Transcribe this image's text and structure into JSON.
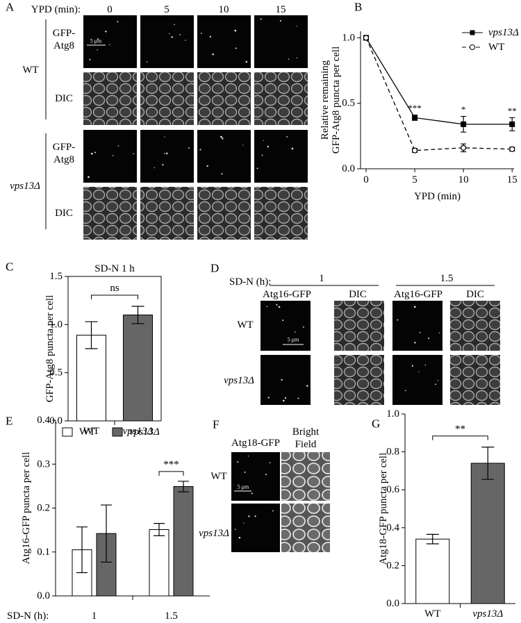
{
  "chart_data": [
    {
      "type": "line",
      "panel": "B",
      "xlabel": "YPD (min)",
      "ylabel": [
        "Relative remaining",
        "GFP-Atg8 puncta per cell"
      ],
      "x": [
        0,
        5,
        10,
        15
      ],
      "xlim": [
        -0.57,
        15.2
      ],
      "xticks": [
        0,
        5,
        10,
        15
      ],
      "ylim": [
        0,
        1.05
      ],
      "yticks": [
        {
          "value": 0,
          "label": "0.0"
        },
        0.5,
        {
          "value": 1,
          "label": "1.0"
        }
      ],
      "legend": "upper right",
      "series": [
        {
          "name": "vps13Δ",
          "color": "#000000",
          "linestyle": "solid",
          "marker": "square",
          "marker_fill": "#000000",
          "values": [
            1.0,
            0.39,
            0.34,
            0.34
          ],
          "errors": [
            0,
            0.02,
            0.06,
            0.05
          ],
          "significance": [
            null,
            "***",
            "*",
            "**"
          ]
        },
        {
          "name": "WT",
          "color": "#000000",
          "linestyle": "dashed",
          "marker": "circle",
          "marker_fill": "#ffffff",
          "values": [
            1.0,
            0.14,
            0.16,
            0.15
          ],
          "errors": [
            0,
            0.015,
            0.03,
            0.015
          ]
        }
      ]
    },
    {
      "type": "bar",
      "panel": "C",
      "title": "SD-N 1 h",
      "ylabel": [
        "GFP-Atg8 puncta per cell"
      ],
      "categories": [
        "WT",
        "vps13Δ"
      ],
      "values": [
        0.89,
        1.1
      ],
      "errors": [
        0.14,
        0.09
      ],
      "colors": [
        "#ffffff",
        "#666666"
      ],
      "ylim": [
        0,
        1.5
      ],
      "yticks": [
        {
          "value": 0,
          "label": "0.0"
        },
        0.5,
        {
          "value": 1,
          "label": "1.0"
        },
        1.5
      ],
      "significance": "ns"
    },
    {
      "type": "grouped_bar",
      "panel": "E",
      "xlabel": "SD-N (h):",
      "ylabel": [
        "Atg16-GFP puncta per cell"
      ],
      "categories": [
        "1",
        "1.5"
      ],
      "legend": "upper left",
      "series": [
        {
          "name": "WT",
          "color": "#ffffff",
          "values": [
            0.105,
            0.151
          ],
          "errors": [
            0.052,
            0.014
          ]
        },
        {
          "name": "vps13Δ",
          "color": "#666666",
          "values": [
            0.142,
            0.249
          ],
          "errors": [
            0.065,
            0.012
          ]
        }
      ],
      "significance": [
        null,
        "***"
      ],
      "ylim": [
        0,
        0.4
      ],
      "yticks": [
        {
          "value": 0,
          "label": "0.0"
        },
        0.1,
        0.2,
        0.3,
        0.4
      ]
    },
    {
      "type": "bar",
      "panel": "G",
      "ylabel": [
        "Atg18-GFP puncta per cell"
      ],
      "categories": [
        "WT",
        "vps13Δ"
      ],
      "values": [
        0.34,
        0.74
      ],
      "errors": [
        0.025,
        0.085
      ],
      "colors": [
        "#ffffff",
        "#666666"
      ],
      "ylim": [
        0,
        1.0
      ],
      "yticks": [
        {
          "value": 0,
          "label": "0.0"
        },
        0.2,
        0.4,
        0.6,
        0.8,
        {
          "value": 1,
          "label": "1.0"
        }
      ],
      "significance": "**"
    }
  ],
  "micrographs": [
    {
      "panel": "A",
      "axis_label": "YPD (min):",
      "timepoints": [
        "0",
        "5",
        "10",
        "15"
      ],
      "groups": [
        {
          "name": "WT",
          "rows": [
            [
              "GFP-",
              "Atg8"
            ],
            [
              "DIC"
            ]
          ]
        },
        {
          "name": "vps13Δ",
          "rows": [
            [
              "GFP-",
              "Atg8"
            ],
            [
              "DIC"
            ]
          ]
        }
      ],
      "scale_bar": "5 μm"
    },
    {
      "panel": "D",
      "axis_label": "SD-N (h):",
      "timepoints": [
        "1",
        "1.5"
      ],
      "channels": [
        "Atg16-GFP",
        "DIC"
      ],
      "rows": [
        "WT",
        "vps13Δ"
      ],
      "scale_bar": "5 μm"
    },
    {
      "panel": "F",
      "channels": [
        [
          "Atg18-GFP"
        ],
        [
          "Bright",
          "Field"
        ]
      ],
      "rows": [
        "WT",
        "vps13Δ"
      ],
      "scale_bar": "5 μm"
    }
  ]
}
